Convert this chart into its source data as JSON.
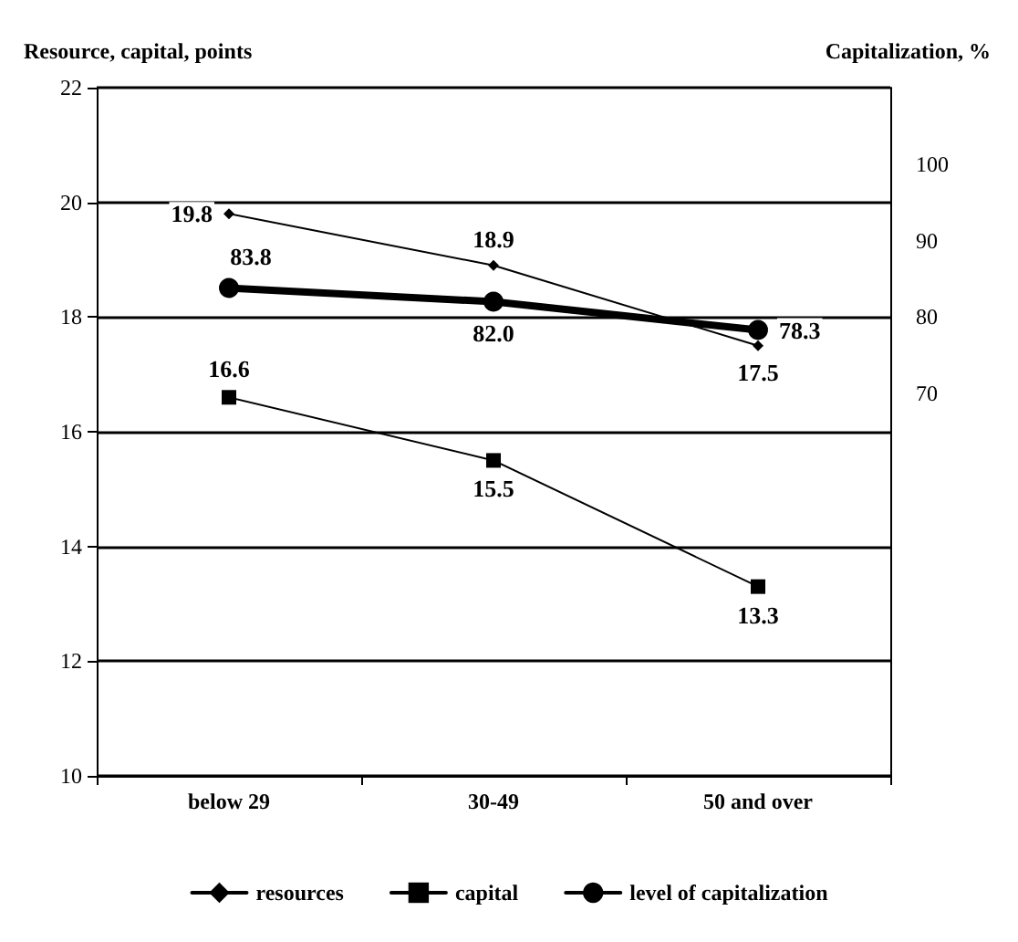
{
  "chart_data": {
    "type": "line",
    "ylabel": "Resource, capital, points",
    "y2label": "Capitalization, %",
    "categories": [
      "below 29",
      "30-49",
      "50 and over"
    ],
    "series": [
      {
        "name": "resources",
        "color": "#000000",
        "values": [
          19.8,
          18.9,
          17.5
        ],
        "marker": "diamond"
      },
      {
        "name": "capital",
        "color": "#000000",
        "values": [
          16.6,
          15.5,
          13.3
        ],
        "marker": "square"
      },
      {
        "name": "level of capitalization",
        "color": "#000000",
        "values": [
          83.8,
          82.0,
          78.3
        ],
        "value_labels": [
          "83.8",
          "82.0",
          "78.3"
        ],
        "marker": "circle",
        "axis": "y2"
      }
    ],
    "ylim": [
      10,
      22
    ],
    "yticks": [
      10,
      12,
      14,
      16,
      18,
      20,
      22
    ],
    "y2lim": [
      20,
      110
    ],
    "y2ticks": [
      70,
      80,
      90,
      100
    ],
    "grid": "y",
    "legend": "bottom",
    "data_labels": true,
    "line_style": "solid"
  }
}
